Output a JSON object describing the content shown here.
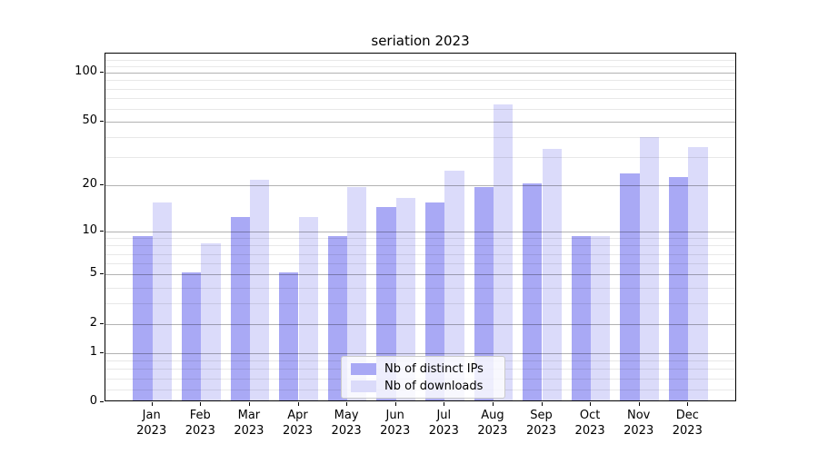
{
  "title": "seriation 2023",
  "chart_data": {
    "type": "bar",
    "title": "seriation 2023",
    "months": [
      "Jan",
      "Feb",
      "Mar",
      "Apr",
      "May",
      "Jun",
      "Jul",
      "Aug",
      "Sep",
      "Oct",
      "Nov",
      "Dec"
    ],
    "year": "2023",
    "categories": [
      "Jan 2023",
      "Feb 2023",
      "Mar 2023",
      "Apr 2023",
      "May 2023",
      "Jun 2023",
      "Jul 2023",
      "Aug 2023",
      "Sep 2023",
      "Oct 2023",
      "Nov 2023",
      "Dec 2023"
    ],
    "series": [
      {
        "name": "Nb of distinct IPs",
        "color": "#a9a9f5",
        "values": [
          9,
          5,
          12,
          5,
          9,
          14,
          15,
          19,
          20,
          9,
          23,
          22
        ]
      },
      {
        "name": "Nb of downloads",
        "color": "#dbdbfa",
        "values": [
          15,
          8,
          21,
          12,
          19,
          16,
          24,
          62,
          33,
          9,
          39,
          34
        ]
      }
    ],
    "yscale": "log1p",
    "ylim": [
      0,
      131.4
    ],
    "yticks": [
      0,
      1,
      2,
      5,
      10,
      20,
      50,
      100
    ],
    "minor_yticks": [
      0.2,
      0.4,
      0.6,
      0.8,
      3,
      4,
      6,
      7,
      8,
      9,
      30,
      40,
      60,
      70,
      80,
      90,
      110,
      120
    ],
    "grid": true,
    "legend_position": "lower center",
    "xlabel": "",
    "ylabel": ""
  },
  "legend": {
    "items": [
      {
        "label": "Nb of distinct IPs"
      },
      {
        "label": "Nb of downloads"
      }
    ]
  }
}
